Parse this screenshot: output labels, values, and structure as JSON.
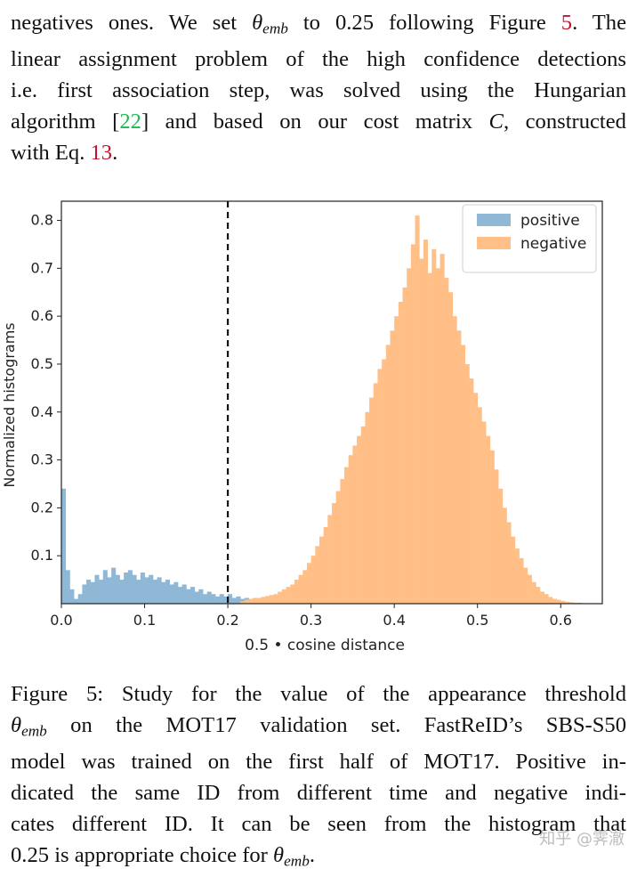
{
  "intro": {
    "l1a": "negatives ones. We set ",
    "l1b": " to 0.25 following Figure ",
    "l1ref": "5",
    "l1c": ". The",
    "l2": "linear assignment problem of the high confidence detections",
    "l3": "i.e. first association step, was solved using the Hungarian",
    "l4a": "algorithm [",
    "l4ref": "22",
    "l4b": "] and based on our cost matrix ",
    "l4c": ", constructed",
    "l5a": "with Eq. ",
    "l5ref": "13",
    "l5b": "."
  },
  "math": {
    "theta": "θ",
    "emb": "emb",
    "C": "C"
  },
  "caption": {
    "l1": "Figure 5: Study for the value of the appearance threshold",
    "l2b": " on the MOT17 validation set.  FastReID’s SBS-S50",
    "l3": "model was trained on the first half of MOT17. Positive in-",
    "l4": "dicated the same ID from different time and negative indi-",
    "l5": "cates different ID. It can be seen from the histogram that",
    "l6a": "0.25 is appropriate choice for ",
    "l6b": "."
  },
  "watermark": "知乎 @霁澈",
  "chart_data": {
    "type": "bar",
    "title": "",
    "xlabel": "0.5 • cosine distance",
    "ylabel": "Normalized histograms",
    "xlim": [
      0.0,
      0.65
    ],
    "ylim": [
      0.0,
      0.84
    ],
    "xticks": [
      "0.0",
      "0.1",
      "0.2",
      "0.3",
      "0.4",
      "0.5",
      "0.6"
    ],
    "yticks": [
      "0.1",
      "0.2",
      "0.3",
      "0.4",
      "0.5",
      "0.6",
      "0.7",
      "0.8"
    ],
    "threshold_line": 0.2,
    "bin_width": 0.005,
    "legend_position": "top-right",
    "series": [
      {
        "name": "positive",
        "color": "#8fb7d6",
        "x_start": 0.0,
        "values": [
          0.24,
          0.07,
          0.03,
          0.01,
          0.02,
          0.04,
          0.05,
          0.045,
          0.06,
          0.05,
          0.07,
          0.055,
          0.075,
          0.06,
          0.05,
          0.065,
          0.07,
          0.06,
          0.05,
          0.065,
          0.055,
          0.06,
          0.05,
          0.055,
          0.045,
          0.05,
          0.04,
          0.045,
          0.035,
          0.04,
          0.03,
          0.035,
          0.025,
          0.03,
          0.02,
          0.025,
          0.02,
          0.015,
          0.02,
          0.015,
          0.02,
          0.012,
          0.015,
          0.01,
          0.012,
          0.008,
          0.01,
          0.006,
          0.008,
          0.005,
          0.006,
          0.004,
          0.004,
          0.003,
          0.003,
          0.002,
          0.002,
          0.002,
          0.001,
          0.001
        ]
      },
      {
        "name": "negative",
        "color": "#ffbf86",
        "x_start": 0.215,
        "values": [
          0.005,
          0.008,
          0.01,
          0.012,
          0.012,
          0.014,
          0.016,
          0.018,
          0.02,
          0.025,
          0.03,
          0.035,
          0.04,
          0.05,
          0.06,
          0.07,
          0.085,
          0.1,
          0.12,
          0.14,
          0.16,
          0.185,
          0.21,
          0.235,
          0.26,
          0.285,
          0.31,
          0.33,
          0.35,
          0.37,
          0.4,
          0.43,
          0.46,
          0.49,
          0.51,
          0.54,
          0.57,
          0.6,
          0.63,
          0.66,
          0.7,
          0.75,
          0.81,
          0.72,
          0.76,
          0.69,
          0.74,
          0.7,
          0.73,
          0.68,
          0.65,
          0.6,
          0.57,
          0.54,
          0.5,
          0.47,
          0.44,
          0.41,
          0.38,
          0.35,
          0.32,
          0.28,
          0.24,
          0.2,
          0.17,
          0.14,
          0.115,
          0.095,
          0.075,
          0.06,
          0.045,
          0.035,
          0.025,
          0.02,
          0.014,
          0.01,
          0.008,
          0.006,
          0.004,
          0.003,
          0.002,
          0.002,
          0.001
        ]
      }
    ]
  }
}
